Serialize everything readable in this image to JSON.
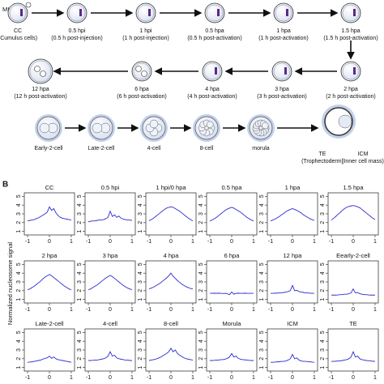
{
  "diagram": {
    "oocyte_label": "MII",
    "stages": [
      {
        "name": "CC",
        "detail": "(Cumulus cells)"
      },
      {
        "name": "0.5 hpi",
        "detail": "(0.5 h post-injection)"
      },
      {
        "name": "1 hpi",
        "detail": "(1 h post-injection)"
      },
      {
        "name": "0.5 hpa",
        "detail": "(0.5 h post-activation)"
      },
      {
        "name": "1 hpa",
        "detail": "(1 h post-activation)"
      },
      {
        "name": "1.5 hpa",
        "detail": "(1.5 h post-activation)"
      },
      {
        "name": "2 hpa",
        "detail": "(2 h post-activation)"
      },
      {
        "name": "3 hpa",
        "detail": "(3 h post-activation)"
      },
      {
        "name": "4 hpa",
        "detail": "(4 h post-activation)"
      },
      {
        "name": "6 hpa",
        "detail": "(6 h post-activation)"
      },
      {
        "name": "12 hpa",
        "detail": "(12 h post-activation)"
      },
      {
        "name": "Early-2-cell"
      },
      {
        "name": "Late-2-cell"
      },
      {
        "name": "4-cell"
      },
      {
        "name": "8-cell"
      },
      {
        "name": "morula"
      },
      {
        "name": "TE",
        "detail": "(Trophectoderm)"
      },
      {
        "name": "ICM",
        "detail": "(Inner cell mass)"
      }
    ]
  },
  "panel_b": {
    "label": "B",
    "y_axis_label": "Normalized nucleosome signal"
  },
  "chart_data": [
    {
      "type": "line",
      "title": "CC",
      "color": "#2b2bd0",
      "xlim": [
        -1.15,
        1.15
      ],
      "ylim": [
        0.6,
        5.4
      ],
      "xticks": [
        -1,
        0,
        1
      ],
      "yticks": [
        1,
        2,
        3,
        4,
        5
      ],
      "x": [
        -1,
        -0.9,
        -0.8,
        -0.7,
        -0.6,
        -0.5,
        -0.4,
        -0.3,
        -0.2,
        -0.1,
        0,
        0.1,
        0.2,
        0.3,
        0.4,
        0.5,
        0.6,
        0.7,
        0.8,
        0.9,
        1
      ],
      "values": [
        2.2,
        2.25,
        2.3,
        2.35,
        2.45,
        2.55,
        2.7,
        2.85,
        3.0,
        3.2,
        3.8,
        3.4,
        3.6,
        3.1,
        2.8,
        2.6,
        2.5,
        2.45,
        2.4,
        2.35,
        2.3
      ]
    },
    {
      "type": "line",
      "title": "0.5 hpi",
      "color": "#2b2bd0",
      "xlim": [
        -1.15,
        1.15
      ],
      "ylim": [
        0.6,
        5.4
      ],
      "xticks": [
        -1,
        0,
        1
      ],
      "yticks": [
        1,
        2,
        3,
        4,
        5
      ],
      "x": [
        -1,
        -0.9,
        -0.8,
        -0.7,
        -0.6,
        -0.5,
        -0.4,
        -0.3,
        -0.2,
        -0.1,
        0,
        0.1,
        0.2,
        0.3,
        0.4,
        0.5,
        0.6,
        0.7,
        0.8,
        0.9,
        1
      ],
      "values": [
        2.1,
        2.15,
        2.2,
        2.2,
        2.25,
        2.3,
        2.3,
        2.35,
        2.45,
        2.6,
        3.3,
        2.7,
        2.9,
        2.6,
        2.75,
        2.5,
        2.4,
        2.35,
        2.3,
        2.3,
        2.25
      ]
    },
    {
      "type": "line",
      "title": "1 hpi/0 hpa",
      "color": "#2b2bd0",
      "xlim": [
        -1.15,
        1.15
      ],
      "ylim": [
        0.6,
        5.4
      ],
      "xticks": [
        -1,
        0,
        1
      ],
      "yticks": [
        1,
        2,
        3,
        4,
        5
      ],
      "x": [
        -1,
        -0.9,
        -0.8,
        -0.7,
        -0.6,
        -0.5,
        -0.4,
        -0.3,
        -0.2,
        -0.1,
        0,
        0.1,
        0.2,
        0.3,
        0.4,
        0.5,
        0.6,
        0.7,
        0.8,
        0.9,
        1
      ],
      "values": [
        2.2,
        2.35,
        2.5,
        2.7,
        2.9,
        3.1,
        3.3,
        3.5,
        3.65,
        3.75,
        3.8,
        3.75,
        3.6,
        3.45,
        3.3,
        3.1,
        2.9,
        2.7,
        2.5,
        2.35,
        2.2
      ]
    },
    {
      "type": "line",
      "title": "0.5 hpa",
      "color": "#2b2bd0",
      "xlim": [
        -1.15,
        1.15
      ],
      "ylim": [
        0.6,
        5.4
      ],
      "xticks": [
        -1,
        0,
        1
      ],
      "yticks": [
        1,
        2,
        3,
        4,
        5
      ],
      "x": [
        -1,
        -0.9,
        -0.8,
        -0.7,
        -0.6,
        -0.5,
        -0.4,
        -0.3,
        -0.2,
        -0.1,
        0,
        0.1,
        0.2,
        0.3,
        0.4,
        0.5,
        0.6,
        0.7,
        0.8,
        0.9,
        1
      ],
      "values": [
        2.2,
        2.3,
        2.45,
        2.6,
        2.8,
        3.0,
        3.2,
        3.4,
        3.55,
        3.65,
        3.75,
        3.65,
        3.5,
        3.35,
        3.2,
        3.0,
        2.8,
        2.6,
        2.45,
        2.3,
        2.2
      ]
    },
    {
      "type": "line",
      "title": "1 hpa",
      "color": "#2b2bd0",
      "xlim": [
        -1.15,
        1.15
      ],
      "ylim": [
        0.6,
        5.4
      ],
      "xticks": [
        -1,
        0,
        1
      ],
      "yticks": [
        1,
        2,
        3,
        4,
        5
      ],
      "x": [
        -1,
        -0.9,
        -0.8,
        -0.7,
        -0.6,
        -0.5,
        -0.4,
        -0.3,
        -0.2,
        -0.1,
        0,
        0.1,
        0.2,
        0.3,
        0.4,
        0.5,
        0.6,
        0.7,
        0.8,
        0.9,
        1
      ],
      "values": [
        2.2,
        2.3,
        2.4,
        2.55,
        2.7,
        2.9,
        3.05,
        3.25,
        3.4,
        3.5,
        3.6,
        3.5,
        3.4,
        3.25,
        3.1,
        2.9,
        2.75,
        2.6,
        2.45,
        2.35,
        2.25
      ]
    },
    {
      "type": "line",
      "title": "1.5 hpa",
      "color": "#2b2bd0",
      "xlim": [
        -1.15,
        1.15
      ],
      "ylim": [
        0.6,
        5.4
      ],
      "xticks": [
        -1,
        0,
        1
      ],
      "yticks": [
        1,
        2,
        3,
        4,
        5
      ],
      "x": [
        -1,
        -0.9,
        -0.8,
        -0.7,
        -0.6,
        -0.5,
        -0.4,
        -0.3,
        -0.2,
        -0.1,
        0,
        0.1,
        0.2,
        0.3,
        0.4,
        0.5,
        0.6,
        0.7,
        0.8,
        0.9,
        1
      ],
      "values": [
        2.3,
        2.5,
        2.7,
        2.95,
        3.15,
        3.4,
        3.6,
        3.75,
        3.85,
        3.9,
        3.95,
        3.9,
        3.8,
        3.7,
        3.5,
        3.3,
        3.1,
        2.9,
        2.7,
        2.5,
        2.35
      ]
    },
    {
      "type": "line",
      "title": "2 hpa",
      "color": "#2b2bd0",
      "xlim": [
        -1.15,
        1.15
      ],
      "ylim": [
        0.6,
        5.4
      ],
      "xticks": [
        -1,
        0,
        1
      ],
      "yticks": [
        1,
        2,
        3,
        4,
        5
      ],
      "x": [
        -1,
        -0.9,
        -0.8,
        -0.7,
        -0.6,
        -0.5,
        -0.4,
        -0.3,
        -0.2,
        -0.1,
        0,
        0.1,
        0.2,
        0.3,
        0.4,
        0.5,
        0.6,
        0.7,
        0.8,
        0.9,
        1
      ],
      "values": [
        2.1,
        2.2,
        2.35,
        2.5,
        2.7,
        2.9,
        3.1,
        3.35,
        3.55,
        3.7,
        3.85,
        3.7,
        3.5,
        3.3,
        3.1,
        2.9,
        2.7,
        2.5,
        2.35,
        2.2,
        2.1
      ]
    },
    {
      "type": "line",
      "title": "3 hpa",
      "color": "#2b2bd0",
      "xlim": [
        -1.15,
        1.15
      ],
      "ylim": [
        0.6,
        5.4
      ],
      "xticks": [
        -1,
        0,
        1
      ],
      "yticks": [
        1,
        2,
        3,
        4,
        5
      ],
      "x": [
        -1,
        -0.9,
        -0.8,
        -0.7,
        -0.6,
        -0.5,
        -0.4,
        -0.3,
        -0.2,
        -0.1,
        0,
        0.1,
        0.2,
        0.3,
        0.4,
        0.5,
        0.6,
        0.7,
        0.8,
        0.9,
        1
      ],
      "values": [
        2.1,
        2.2,
        2.35,
        2.5,
        2.65,
        2.85,
        3.05,
        3.25,
        3.45,
        3.6,
        3.75,
        3.6,
        3.4,
        3.2,
        3.0,
        2.8,
        2.6,
        2.45,
        2.3,
        2.2,
        2.1
      ]
    },
    {
      "type": "line",
      "title": "4 hpa",
      "color": "#2b2bd0",
      "xlim": [
        -1.15,
        1.15
      ],
      "ylim": [
        0.6,
        5.4
      ],
      "xticks": [
        -1,
        0,
        1
      ],
      "yticks": [
        1,
        2,
        3,
        4,
        5
      ],
      "x": [
        -1,
        -0.9,
        -0.8,
        -0.7,
        -0.6,
        -0.5,
        -0.4,
        -0.3,
        -0.2,
        -0.1,
        0,
        0.1,
        0.2,
        0.3,
        0.4,
        0.5,
        0.6,
        0.7,
        0.8,
        0.9,
        1
      ],
      "values": [
        2.2,
        2.3,
        2.4,
        2.55,
        2.7,
        2.85,
        3.05,
        3.25,
        3.45,
        3.7,
        4.0,
        3.65,
        3.4,
        3.15,
        2.95,
        2.75,
        2.6,
        2.45,
        2.35,
        2.25,
        2.2
      ]
    },
    {
      "type": "line",
      "title": "6 hpa",
      "color": "#2b2bd0",
      "xlim": [
        -1.15,
        1.15
      ],
      "ylim": [
        0.6,
        5.4
      ],
      "xticks": [
        -1,
        0,
        1
      ],
      "yticks": [
        1,
        2,
        3,
        4,
        5
      ],
      "x": [
        -1,
        -0.9,
        -0.8,
        -0.7,
        -0.6,
        -0.5,
        -0.4,
        -0.3,
        -0.2,
        -0.1,
        0,
        0.1,
        0.2,
        0.3,
        0.4,
        0.5,
        0.6,
        0.7,
        0.8,
        0.9,
        1
      ],
      "values": [
        1.7,
        1.7,
        1.72,
        1.7,
        1.72,
        1.7,
        1.68,
        1.7,
        1.65,
        1.55,
        1.85,
        1.6,
        1.7,
        1.72,
        1.7,
        1.7,
        1.72,
        1.7,
        1.7,
        1.7,
        1.7
      ]
    },
    {
      "type": "line",
      "title": "12 hpa",
      "color": "#2b2bd0",
      "xlim": [
        -1.15,
        1.15
      ],
      "ylim": [
        0.6,
        5.4
      ],
      "xticks": [
        -1,
        0,
        1
      ],
      "yticks": [
        1,
        2,
        3,
        4,
        5
      ],
      "x": [
        -1,
        -0.9,
        -0.8,
        -0.7,
        -0.6,
        -0.5,
        -0.4,
        -0.3,
        -0.2,
        -0.1,
        0,
        0.1,
        0.2,
        0.3,
        0.4,
        0.5,
        0.6,
        0.7,
        0.8,
        0.9,
        1
      ],
      "values": [
        1.7,
        1.7,
        1.72,
        1.72,
        1.75,
        1.75,
        1.8,
        1.85,
        1.9,
        2.0,
        2.6,
        2.0,
        2.05,
        1.9,
        1.85,
        1.8,
        1.75,
        1.75,
        1.72,
        1.7,
        1.7
      ]
    },
    {
      "type": "line",
      "title": "Eearly-2-cell",
      "color": "#2b2bd0",
      "xlim": [
        -1.15,
        1.15
      ],
      "ylim": [
        0.6,
        5.4
      ],
      "xticks": [
        -1,
        0,
        1
      ],
      "yticks": [
        1,
        2,
        3,
        4,
        5
      ],
      "x": [
        -1,
        -0.9,
        -0.8,
        -0.7,
        -0.6,
        -0.5,
        -0.4,
        -0.3,
        -0.2,
        -0.1,
        0,
        0.1,
        0.2,
        0.3,
        0.4,
        0.5,
        0.6,
        0.7,
        0.8,
        0.9,
        1
      ],
      "values": [
        1.5,
        1.5,
        1.5,
        1.52,
        1.55,
        1.55,
        1.6,
        1.6,
        1.65,
        1.75,
        2.2,
        1.75,
        1.8,
        1.65,
        1.6,
        1.55,
        1.55,
        1.52,
        1.5,
        1.5,
        1.5
      ]
    },
    {
      "type": "line",
      "title": "Late-2-cell",
      "color": "#2b2bd0",
      "xlim": [
        -1.15,
        1.15
      ],
      "ylim": [
        0.6,
        5.4
      ],
      "xticks": [
        -1,
        0,
        1
      ],
      "yticks": [
        1,
        2,
        3,
        4,
        5
      ],
      "x": [
        -1,
        -0.9,
        -0.8,
        -0.7,
        -0.6,
        -0.5,
        -0.4,
        -0.3,
        -0.2,
        -0.1,
        0,
        0.1,
        0.2,
        0.3,
        0.4,
        0.5,
        0.6,
        0.7,
        0.8,
        0.9,
        1
      ],
      "values": [
        1.6,
        1.62,
        1.65,
        1.7,
        1.75,
        1.8,
        1.85,
        1.95,
        2.05,
        2.1,
        2.3,
        2.05,
        2.2,
        2.0,
        1.9,
        1.85,
        1.8,
        1.75,
        1.7,
        1.65,
        1.6
      ]
    },
    {
      "type": "line",
      "title": "4-cell",
      "color": "#2b2bd0",
      "xlim": [
        -1.15,
        1.15
      ],
      "ylim": [
        0.6,
        5.4
      ],
      "xticks": [
        -1,
        0,
        1
      ],
      "yticks": [
        1,
        2,
        3,
        4,
        5
      ],
      "x": [
        -1,
        -0.9,
        -0.8,
        -0.7,
        -0.6,
        -0.5,
        -0.4,
        -0.3,
        -0.2,
        -0.1,
        0,
        0.1,
        0.2,
        0.3,
        0.4,
        0.5,
        0.6,
        0.7,
        0.8,
        0.9,
        1
      ],
      "values": [
        1.8,
        1.8,
        1.82,
        1.85,
        1.85,
        1.9,
        1.95,
        2.0,
        2.1,
        2.3,
        2.8,
        2.3,
        2.4,
        2.1,
        2.0,
        1.95,
        1.9,
        1.85,
        1.85,
        1.8,
        1.8
      ]
    },
    {
      "type": "line",
      "title": "8-cell",
      "color": "#2b2bd0",
      "xlim": [
        -1.15,
        1.15
      ],
      "ylim": [
        0.6,
        5.4
      ],
      "xticks": [
        -1,
        0,
        1
      ],
      "yticks": [
        1,
        2,
        3,
        4,
        5
      ],
      "x": [
        -1,
        -0.9,
        -0.8,
        -0.7,
        -0.6,
        -0.5,
        -0.4,
        -0.3,
        -0.2,
        -0.1,
        0,
        0.1,
        0.2,
        0.3,
        0.4,
        0.5,
        0.6,
        0.7,
        0.8,
        0.9,
        1
      ],
      "values": [
        1.8,
        1.85,
        1.9,
        1.95,
        2.05,
        2.15,
        2.3,
        2.45,
        2.6,
        2.8,
        3.2,
        2.8,
        3.0,
        2.6,
        2.4,
        2.25,
        2.1,
        2.0,
        1.95,
        1.9,
        1.85
      ]
    },
    {
      "type": "line",
      "title": "Morula",
      "color": "#2b2bd0",
      "xlim": [
        -1.15,
        1.15
      ],
      "ylim": [
        0.6,
        5.4
      ],
      "xticks": [
        -1,
        0,
        1
      ],
      "yticks": [
        1,
        2,
        3,
        4,
        5
      ],
      "x": [
        -1,
        -0.9,
        -0.8,
        -0.7,
        -0.6,
        -0.5,
        -0.4,
        -0.3,
        -0.2,
        -0.1,
        0,
        0.1,
        0.2,
        0.3,
        0.4,
        0.5,
        0.6,
        0.7,
        0.8,
        0.9,
        1
      ],
      "values": [
        1.8,
        1.8,
        1.82,
        1.85,
        1.85,
        1.9,
        1.9,
        1.95,
        2.05,
        2.2,
        2.6,
        2.2,
        2.3,
        2.05,
        1.95,
        1.9,
        1.88,
        1.85,
        1.82,
        1.8,
        1.8
      ]
    },
    {
      "type": "line",
      "title": "ICM",
      "color": "#2b2bd0",
      "xlim": [
        -1.15,
        1.15
      ],
      "ylim": [
        0.6,
        5.4
      ],
      "xticks": [
        -1,
        0,
        1
      ],
      "yticks": [
        1,
        2,
        3,
        4,
        5
      ],
      "x": [
        -1,
        -0.9,
        -0.8,
        -0.7,
        -0.6,
        -0.5,
        -0.4,
        -0.3,
        -0.2,
        -0.1,
        0,
        0.1,
        0.2,
        0.3,
        0.4,
        0.5,
        0.6,
        0.7,
        0.8,
        0.9,
        1
      ],
      "values": [
        1.6,
        1.6,
        1.62,
        1.65,
        1.65,
        1.7,
        1.7,
        1.75,
        1.85,
        2.0,
        2.5,
        2.0,
        2.1,
        1.85,
        1.75,
        1.7,
        1.7,
        1.68,
        1.65,
        1.62,
        1.6
      ]
    },
    {
      "type": "line",
      "title": "TE",
      "color": "#2b2bd0",
      "xlim": [
        -1.15,
        1.15
      ],
      "ylim": [
        0.6,
        5.4
      ],
      "xticks": [
        -1,
        0,
        1
      ],
      "yticks": [
        1,
        2,
        3,
        4,
        5
      ],
      "x": [
        -1,
        -0.9,
        -0.8,
        -0.7,
        -0.6,
        -0.5,
        -0.4,
        -0.3,
        -0.2,
        -0.1,
        0,
        0.1,
        0.2,
        0.3,
        0.4,
        0.5,
        0.6,
        0.7,
        0.8,
        0.9,
        1
      ],
      "values": [
        1.7,
        1.7,
        1.72,
        1.75,
        1.75,
        1.8,
        1.85,
        1.9,
        2.0,
        2.2,
        2.8,
        2.2,
        2.3,
        2.0,
        1.9,
        1.85,
        1.8,
        1.78,
        1.75,
        1.72,
        1.7
      ]
    }
  ]
}
